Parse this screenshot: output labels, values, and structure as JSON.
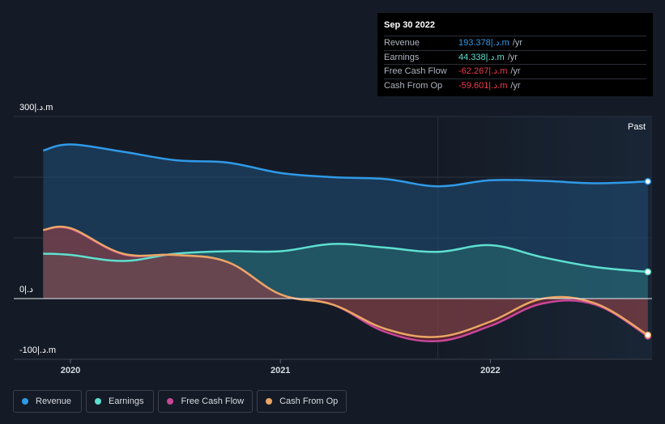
{
  "tooltip": {
    "date": "Sep 30 2022",
    "rows": [
      {
        "label": "Revenue",
        "value": "193.378|.د.m",
        "unit": "/yr",
        "color": "#2f9ae8"
      },
      {
        "label": "Earnings",
        "value": "44.338|.د.m",
        "unit": "/yr",
        "color": "#5ee0d0"
      },
      {
        "label": "Free Cash Flow",
        "value": "-62.267|.د.m",
        "unit": "/yr",
        "color": "#f0394f"
      },
      {
        "label": "Cash From Op",
        "value": "-59.601|.د.m",
        "unit": "/yr",
        "color": "#f0394f"
      }
    ]
  },
  "past_label": "Past",
  "legend": [
    {
      "label": "Revenue",
      "color": "#2f9ae8"
    },
    {
      "label": "Earnings",
      "color": "#5ee0d0"
    },
    {
      "label": "Free Cash Flow",
      "color": "#c9479a"
    },
    {
      "label": "Cash From Op",
      "color": "#eaa664"
    }
  ],
  "chart_data": {
    "type": "area",
    "x_tick_labels": [
      "2020",
      "2021",
      "2022"
    ],
    "x_tick_values": [
      2020.0,
      2021.0,
      2022.0
    ],
    "y_axis_labels": [
      {
        "label": "300|.د.m",
        "value": 300
      },
      {
        "label": "0|.د",
        "value": 0
      },
      {
        "label": "-100|.د.m",
        "value": -100
      }
    ],
    "xlim": [
      2019.73,
      2022.77
    ],
    "ylim": [
      -100,
      300
    ],
    "gridlines": [
      300,
      200,
      100,
      0,
      -100
    ],
    "past_divider_x": 2021.75,
    "series": [
      {
        "name": "Revenue",
        "color": "#2f9ae8",
        "x": [
          2019.87,
          2020.0,
          2020.25,
          2020.5,
          2020.75,
          2021.0,
          2021.25,
          2021.5,
          2021.75,
          2022.0,
          2022.25,
          2022.5,
          2022.75
        ],
        "y": [
          244,
          254,
          242,
          228,
          224,
          207,
          200,
          197,
          185,
          195,
          194,
          190,
          193
        ]
      },
      {
        "name": "Earnings",
        "color": "#5ee0d0",
        "x": [
          2019.87,
          2020.0,
          2020.25,
          2020.5,
          2020.75,
          2021.0,
          2021.25,
          2021.5,
          2021.75,
          2022.0,
          2022.25,
          2022.5,
          2022.75
        ],
        "y": [
          74,
          72,
          62,
          74,
          78,
          78,
          90,
          84,
          77,
          88,
          68,
          52,
          44
        ]
      },
      {
        "name": "Free Cash Flow",
        "color": "#c9479a",
        "x": [
          2019.87,
          2020.0,
          2020.25,
          2020.5,
          2020.75,
          2021.0,
          2021.25,
          2021.5,
          2021.75,
          2022.0,
          2022.25,
          2022.5,
          2022.75
        ],
        "y": [
          113,
          115,
          73,
          72,
          60,
          7,
          -10,
          -55,
          -70,
          -45,
          -8,
          -10,
          -62
        ]
      },
      {
        "name": "Cash From Op",
        "color": "#eaa664",
        "x": [
          2019.87,
          2020.0,
          2020.25,
          2020.5,
          2020.75,
          2021.0,
          2021.25,
          2021.5,
          2021.75,
          2022.0,
          2022.25,
          2022.5,
          2022.75
        ],
        "y": [
          113,
          116,
          74,
          72,
          60,
          7,
          -10,
          -50,
          -63,
          -38,
          0,
          -8,
          -60
        ]
      }
    ]
  }
}
